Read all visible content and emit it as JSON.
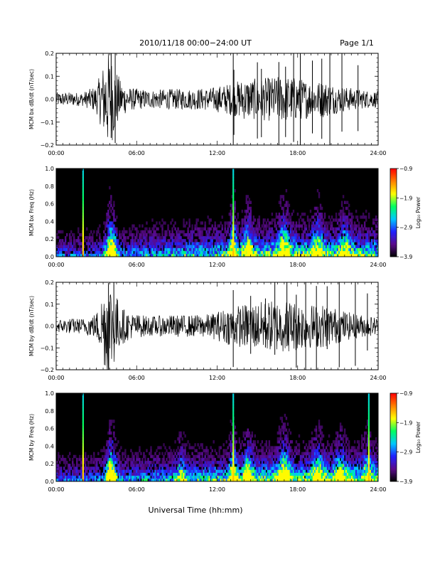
{
  "header": {
    "title": "2010/11/18  00:00−24:00 UT",
    "page": "Page 1/1"
  },
  "chart_data": [
    {
      "type": "line",
      "panel": "bx-waveform",
      "ylabel": "MCM bx dB/dt (nT/sec)",
      "ylim": [
        -0.2,
        0.2
      ],
      "yticks": [
        -0.2,
        -0.1,
        0.0,
        0.1,
        0.2
      ],
      "ytick_labels": [
        "−0.2",
        "−0.1",
        "0.0",
        "0.1",
        "0.2"
      ],
      "xlim": [
        0,
        24
      ],
      "xticks": [
        0,
        6,
        12,
        18,
        24
      ],
      "xtick_labels": [
        "00:00",
        "06:00",
        "12:00",
        "18:00",
        "24:00"
      ],
      "envelope": {
        "hours": [
          0,
          1,
          2,
          3,
          3.5,
          3.8,
          4.2,
          4.8,
          5.5,
          7,
          8.5,
          10,
          11.5,
          13,
          14,
          15,
          16.5,
          17.5,
          19,
          20,
          21,
          22,
          23,
          24
        ],
        "amplitude": [
          0.03,
          0.03,
          0.03,
          0.06,
          0.15,
          0.22,
          0.18,
          0.08,
          0.05,
          0.04,
          0.045,
          0.045,
          0.05,
          0.07,
          0.09,
          0.09,
          0.1,
          0.1,
          0.08,
          0.08,
          0.06,
          0.05,
          0.04,
          0.035
        ]
      },
      "spikes_hours": [
        4.1,
        4.4,
        13.2,
        13.25,
        15.0,
        15.3,
        16.6,
        17.1,
        17.7,
        18.2,
        19.1,
        19.8,
        20.4,
        21.3,
        22.5
      ]
    },
    {
      "type": "heatmap",
      "panel": "bx-spectrogram",
      "ylabel": "MCM bx Freq (Hz)",
      "ylim": [
        0.0,
        1.0
      ],
      "yticks": [
        0.0,
        0.2,
        0.4,
        0.6,
        0.8,
        1.0
      ],
      "ytick_labels": [
        "0.0",
        "0.2",
        "0.4",
        "0.6",
        "0.8",
        "1.0"
      ],
      "xlim": [
        0,
        24
      ],
      "xticks": [
        0,
        6,
        12,
        18,
        24
      ],
      "xtick_labels": [
        "00:00",
        "06:00",
        "12:00",
        "18:00",
        "24:00"
      ],
      "colorbar": {
        "label": "Log₁₀ Power",
        "range": [
          -3.9,
          -0.9
        ],
        "ticks": [
          -3.9,
          -2.9,
          -1.9,
          -0.9
        ],
        "tick_labels": [
          "−3.9",
          "−2.9",
          "−1.9",
          "−0.9"
        ]
      },
      "vertical_lines_hours": [
        2.0,
        13.2
      ],
      "bursts": [
        {
          "hour": 4.1,
          "width": 0.35,
          "strength": 1.0
        },
        {
          "hour": 13.2,
          "width": 0.25,
          "strength": 0.8
        },
        {
          "hour": 14.3,
          "width": 0.35,
          "strength": 0.7
        },
        {
          "hour": 17.0,
          "width": 0.4,
          "strength": 0.8
        },
        {
          "hour": 19.5,
          "width": 0.4,
          "strength": 0.6
        },
        {
          "hour": 21.5,
          "width": 0.4,
          "strength": 0.5
        }
      ]
    },
    {
      "type": "line",
      "panel": "by-waveform",
      "ylabel": "MCM by dB/dt (nT/sec)",
      "ylim": [
        -0.2,
        0.2
      ],
      "yticks": [
        -0.2,
        -0.1,
        0.0,
        0.1,
        0.2
      ],
      "ytick_labels": [
        "−0.2",
        "−0.1",
        "0.0",
        "0.1",
        "0.2"
      ],
      "xlim": [
        0,
        24
      ],
      "xticks": [
        0,
        6,
        12,
        18,
        24
      ],
      "xtick_labels": [
        "00:00",
        "06:00",
        "12:00",
        "18:00",
        "24:00"
      ],
      "envelope": {
        "hours": [
          0,
          1,
          2,
          3,
          3.5,
          3.8,
          4.2,
          4.8,
          5.5,
          7,
          8.5,
          10,
          11.5,
          13,
          14,
          15,
          16.5,
          17.5,
          19,
          20,
          21,
          22,
          23,
          24
        ],
        "amplitude": [
          0.03,
          0.035,
          0.035,
          0.06,
          0.16,
          0.24,
          0.2,
          0.09,
          0.06,
          0.045,
          0.05,
          0.05,
          0.055,
          0.09,
          0.1,
          0.11,
          0.12,
          0.12,
          0.1,
          0.1,
          0.08,
          0.06,
          0.05,
          0.04
        ]
      },
      "spikes_hours": [
        3.9,
        4.3,
        13.2,
        14.5,
        15.6,
        16.3,
        17.2,
        17.9,
        18.6,
        19.4,
        20.2,
        21.1,
        22.3,
        23.2
      ]
    },
    {
      "type": "heatmap",
      "panel": "by-spectrogram",
      "ylabel": "MCM by Freq (Hz)",
      "ylim": [
        0.0,
        1.0
      ],
      "yticks": [
        0.0,
        0.2,
        0.4,
        0.6,
        0.8,
        1.0
      ],
      "ytick_labels": [
        "0.0",
        "0.2",
        "0.4",
        "0.6",
        "0.8",
        "1.0"
      ],
      "xlim": [
        0,
        24
      ],
      "xticks": [
        0,
        6,
        12,
        18,
        24
      ],
      "xtick_labels": [
        "00:00",
        "06:00",
        "12:00",
        "18:00",
        "24:00"
      ],
      "colorbar": {
        "label": "Log₁₀ Power",
        "range": [
          -3.9,
          -0.9
        ],
        "ticks": [
          -3.9,
          -2.9,
          -1.9,
          -0.9
        ],
        "tick_labels": [
          "−3.9",
          "−2.9",
          "−1.9",
          "−0.9"
        ]
      },
      "vertical_lines_hours": [
        2.0,
        13.2,
        23.3
      ],
      "bursts": [
        {
          "hour": 4.1,
          "width": 0.35,
          "strength": 1.0
        },
        {
          "hour": 9.3,
          "width": 0.3,
          "strength": 0.4
        },
        {
          "hour": 13.2,
          "width": 0.25,
          "strength": 0.8
        },
        {
          "hour": 14.3,
          "width": 0.35,
          "strength": 0.7
        },
        {
          "hour": 17.0,
          "width": 0.4,
          "strength": 0.8
        },
        {
          "hour": 19.5,
          "width": 0.4,
          "strength": 0.6
        },
        {
          "hour": 21.2,
          "width": 0.4,
          "strength": 0.55
        },
        {
          "hour": 23.2,
          "width": 0.3,
          "strength": 0.5
        }
      ]
    }
  ],
  "xaxis_title": "Universal Time (hh:mm)",
  "colors": {
    "waveform": "#000000",
    "background": "#000000",
    "colormap": [
      "#000000",
      "#5a0a8a",
      "#2020ff",
      "#00c8ff",
      "#00ff60",
      "#ffff00",
      "#ff8000",
      "#ff0000"
    ]
  }
}
